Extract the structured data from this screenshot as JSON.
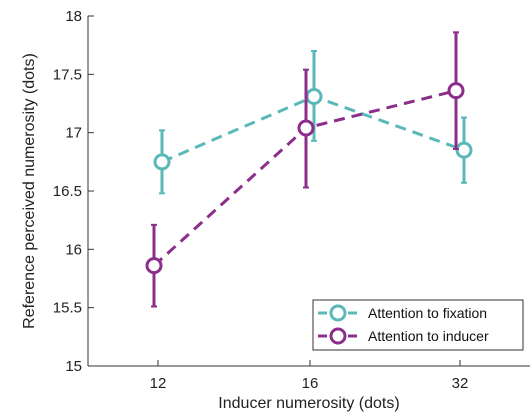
{
  "chart_data": {
    "type": "line",
    "xlabel": "Inducer numerosity (dots)",
    "ylabel": "Reference perceived numerosity (dots)",
    "categories": [
      "12",
      "16",
      "32"
    ],
    "ylim": [
      15,
      18
    ],
    "yticks": [
      "15",
      "15.5",
      "16",
      "16.5",
      "17",
      "17.5",
      "18"
    ],
    "grid": false,
    "legend_position": "bottom-right",
    "series": [
      {
        "name": "Attention to fixation",
        "color": "#5bb8b8",
        "values": [
          16.75,
          17.31,
          16.85
        ],
        "error_low": [
          16.48,
          16.93,
          16.57
        ],
        "error_high": [
          17.02,
          17.7,
          17.13
        ]
      },
      {
        "name": "Attention to inducer",
        "color": "#8b2f8b",
        "values": [
          15.86,
          17.04,
          17.36
        ],
        "error_low": [
          15.51,
          16.53,
          16.86
        ],
        "error_high": [
          16.21,
          17.54,
          17.86
        ]
      }
    ]
  }
}
